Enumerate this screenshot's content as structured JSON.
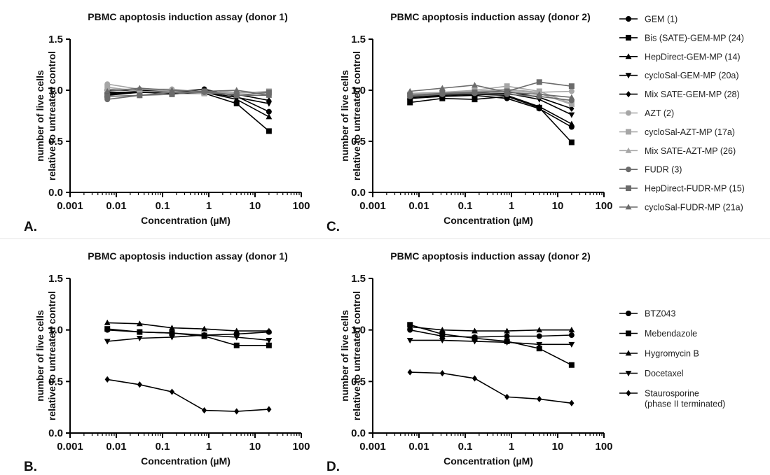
{
  "series_styles": {
    "GEM (1)": {
      "color": "#000000",
      "marker": "circle"
    },
    "Bis (SATE)-GEM-MP (24)": {
      "color": "#000000",
      "marker": "square"
    },
    "HepDirect-GEM-MP (14)": {
      "color": "#000000",
      "marker": "triangle-up"
    },
    "cycloSal-GEM-MP (20a)": {
      "color": "#000000",
      "marker": "triangle-down"
    },
    "Mix SATE-GEM-MP (28)": {
      "color": "#000000",
      "marker": "diamond"
    },
    "AZT (2)": {
      "color": "#a6a6a6",
      "marker": "circle"
    },
    "cycloSal-AZT-MP (17a)": {
      "color": "#a6a6a6",
      "marker": "square"
    },
    "Mix SATE-AZT-MP (26)": {
      "color": "#a6a6a6",
      "marker": "triangle-up"
    },
    "FUDR (3)": {
      "color": "#6b6b6b",
      "marker": "circle"
    },
    "HepDirect-FUDR-MP (15)": {
      "color": "#6b6b6b",
      "marker": "square"
    },
    "cycloSal-FUDR-MP (21a)": {
      "color": "#6b6b6b",
      "marker": "triangle-up"
    },
    "BTZ043": {
      "color": "#000000",
      "marker": "circle"
    },
    "Mebendazole": {
      "color": "#000000",
      "marker": "square"
    },
    "Hygromycin B": {
      "color": "#000000",
      "marker": "triangle-up"
    },
    "Docetaxel": {
      "color": "#000000",
      "marker": "triangle-down"
    },
    "Staurosporine\n(phase II terminated)": {
      "color": "#000000",
      "marker": "diamond"
    }
  },
  "legends": [
    {
      "panel_group": "top",
      "entries": [
        "GEM (1)",
        "Bis (SATE)-GEM-MP (24)",
        "HepDirect-GEM-MP (14)",
        "cycloSal-GEM-MP (20a)",
        "Mix SATE-GEM-MP (28)",
        "AZT (2)",
        "cycloSal-AZT-MP (17a)",
        "Mix SATE-AZT-MP (26)",
        "FUDR (3)",
        "HepDirect-FUDR-MP (15)",
        "cycloSal-FUDR-MP (21a)"
      ]
    },
    {
      "panel_group": "bottom",
      "entries": [
        "BTZ043",
        "Mebendazole",
        "Hygromycin B",
        "Docetaxel",
        "Staurosporine\n(phase II terminated)"
      ]
    }
  ],
  "chart_data": [
    {
      "panel_label": "A.",
      "type": "line",
      "title": "PBMC apoptosis induction assay (donor 1)",
      "xlabel": "Concentration (µM)",
      "ylabel": "number of live cells\nrelative to untreated control",
      "x_scale": "log",
      "xlim": [
        0.001,
        100
      ],
      "ylim": [
        0.0,
        1.5
      ],
      "xticks": [
        "0.001",
        "0.01",
        "0.1",
        "1",
        "10",
        "100"
      ],
      "yticks": [
        "0.0",
        "0.5",
        "1.0",
        "1.5"
      ],
      "x": [
        0.0064,
        0.032,
        0.16,
        0.8,
        4,
        20
      ],
      "series": [
        {
          "name": "GEM (1)",
          "values": [
            0.97,
            0.99,
            0.98,
            1.01,
            0.94,
            0.79
          ]
        },
        {
          "name": "Bis (SATE)-GEM-MP (24)",
          "values": [
            0.95,
            0.98,
            0.97,
            0.97,
            0.87,
            0.6
          ]
        },
        {
          "name": "HepDirect-GEM-MP (14)",
          "values": [
            0.96,
            0.98,
            0.98,
            0.98,
            0.91,
            0.74
          ]
        },
        {
          "name": "cycloSal-GEM-MP (20a)",
          "values": [
            0.98,
            0.98,
            0.99,
            0.98,
            0.93,
            0.87
          ]
        },
        {
          "name": "Mix SATE-GEM-MP (28)",
          "values": [
            1.0,
            1.0,
            0.99,
            0.99,
            0.96,
            0.9
          ]
        },
        {
          "name": "AZT (2)",
          "values": [
            1.06,
            1.01,
            1.01,
            0.98,
            0.98,
            0.98
          ]
        },
        {
          "name": "cycloSal-AZT-MP (17a)",
          "values": [
            1.03,
            0.99,
            0.98,
            0.97,
            0.97,
            0.99
          ]
        },
        {
          "name": "Mix SATE-AZT-MP (26)",
          "values": [
            1.01,
            1.01,
            0.99,
            0.97,
            1.0,
            0.96
          ]
        },
        {
          "name": "FUDR (3)",
          "values": [
            0.91,
            0.95,
            0.98,
            0.98,
            0.95,
            0.95
          ]
        },
        {
          "name": "HepDirect-FUDR-MP (15)",
          "values": [
            0.94,
            0.95,
            0.96,
            0.99,
            0.95,
            0.98
          ]
        },
        {
          "name": "cycloSal-FUDR-MP (21a)",
          "values": [
            0.99,
            1.02,
            1.0,
            0.99,
            1.0,
            0.95
          ]
        }
      ]
    },
    {
      "panel_label": "C.",
      "type": "line",
      "title": "PBMC apoptosis induction assay (donor 2)",
      "xlabel": "Concentration (µM)",
      "ylabel": "number of live cells\nrelative to untreated control",
      "x_scale": "log",
      "xlim": [
        0.001,
        100
      ],
      "ylim": [
        0.0,
        1.5
      ],
      "xticks": [
        "0.001",
        "0.01",
        "0.1",
        "1",
        "10",
        "100"
      ],
      "yticks": [
        "0.0",
        "0.5",
        "1.0",
        "1.5"
      ],
      "x": [
        0.0064,
        0.032,
        0.16,
        0.8,
        4,
        20
      ],
      "series": [
        {
          "name": "GEM (1)",
          "values": [
            0.92,
            0.94,
            0.95,
            0.92,
            0.82,
            0.64
          ]
        },
        {
          "name": "Bis (SATE)-GEM-MP (24)",
          "values": [
            0.88,
            0.92,
            0.91,
            0.94,
            0.83,
            0.49
          ]
        },
        {
          "name": "HepDirect-GEM-MP (14)",
          "values": [
            0.93,
            0.95,
            0.96,
            0.95,
            0.84,
            0.67
          ]
        },
        {
          "name": "cycloSal-GEM-MP (20a)",
          "values": [
            0.94,
            0.95,
            0.97,
            0.97,
            0.91,
            0.76
          ]
        },
        {
          "name": "Mix SATE-GEM-MP (28)",
          "values": [
            0.95,
            0.96,
            0.98,
            0.99,
            0.93,
            0.82
          ]
        },
        {
          "name": "AZT (2)",
          "values": [
            0.96,
            0.97,
            0.99,
            1.01,
            0.98,
            0.99
          ]
        },
        {
          "name": "cycloSal-AZT-MP (17a)",
          "values": [
            0.96,
            0.98,
            1.0,
            1.04,
            0.99,
            0.87
          ]
        },
        {
          "name": "Mix SATE-AZT-MP (26)",
          "values": [
            0.97,
            0.98,
            0.99,
            1.0,
            0.97,
            0.86
          ]
        },
        {
          "name": "FUDR (3)",
          "values": [
            0.94,
            0.96,
            0.97,
            0.96,
            0.94,
            0.9
          ]
        },
        {
          "name": "HepDirect-FUDR-MP (15)",
          "values": [
            0.95,
            0.97,
            0.98,
            0.99,
            1.08,
            1.04
          ]
        },
        {
          "name": "cycloSal-FUDR-MP (21a)",
          "values": [
            0.99,
            1.02,
            1.05,
            0.98,
            0.96,
            0.93
          ]
        }
      ]
    },
    {
      "panel_label": "B.",
      "type": "line",
      "title": "PBMC apoptosis induction assay (donor 1)",
      "xlabel": "Concentration (µM)",
      "ylabel": "number of live cells\nrelative to untreated control",
      "x_scale": "log",
      "xlim": [
        0.001,
        100
      ],
      "ylim": [
        0.0,
        1.5
      ],
      "xticks": [
        "0.001",
        "0.01",
        "0.1",
        "1",
        "10",
        "100"
      ],
      "yticks": [
        "0.0",
        "0.5",
        "1.0",
        "1.5"
      ],
      "x": [
        0.0064,
        0.032,
        0.16,
        0.8,
        4,
        20
      ],
      "series": [
        {
          "name": "BTZ043",
          "values": [
            1.0,
            0.98,
            0.97,
            0.95,
            0.96,
            0.98
          ]
        },
        {
          "name": "Mebendazole",
          "values": [
            1.01,
            0.98,
            0.97,
            0.94,
            0.85,
            0.85
          ]
        },
        {
          "name": "Hygromycin B",
          "values": [
            1.07,
            1.06,
            1.02,
            1.01,
            0.99,
            0.99
          ]
        },
        {
          "name": "Docetaxel",
          "values": [
            0.89,
            0.92,
            0.93,
            0.95,
            0.93,
            0.9
          ]
        },
        {
          "name": "Staurosporine\n(phase II terminated)",
          "values": [
            0.52,
            0.47,
            0.4,
            0.22,
            0.21,
            0.23
          ]
        }
      ]
    },
    {
      "panel_label": "D.",
      "type": "line",
      "title": "PBMC apoptosis induction assay (donor 2)",
      "xlabel": "Concentration (µM)",
      "ylabel": "number of live cells\nrelative to untreated control",
      "x_scale": "log",
      "xlim": [
        0.001,
        100
      ],
      "ylim": [
        0.0,
        1.5
      ],
      "xticks": [
        "0.001",
        "0.01",
        "0.1",
        "1",
        "10",
        "100"
      ],
      "yticks": [
        "0.0",
        "0.5",
        "1.0",
        "1.5"
      ],
      "x": [
        0.0064,
        0.032,
        0.16,
        0.8,
        4,
        20
      ],
      "series": [
        {
          "name": "BTZ043",
          "values": [
            1.0,
            0.94,
            0.93,
            0.94,
            0.94,
            0.95
          ]
        },
        {
          "name": "Mebendazole",
          "values": [
            1.05,
            0.96,
            0.92,
            0.89,
            0.82,
            0.66
          ]
        },
        {
          "name": "Hygromycin B",
          "values": [
            1.03,
            1.0,
            0.99,
            0.99,
            1.0,
            1.0
          ]
        },
        {
          "name": "Docetaxel",
          "values": [
            0.9,
            0.9,
            0.89,
            0.88,
            0.86,
            0.86
          ]
        },
        {
          "name": "Staurosporine\n(phase II terminated)",
          "values": [
            0.59,
            0.58,
            0.53,
            0.35,
            0.33,
            0.29
          ]
        }
      ]
    }
  ]
}
